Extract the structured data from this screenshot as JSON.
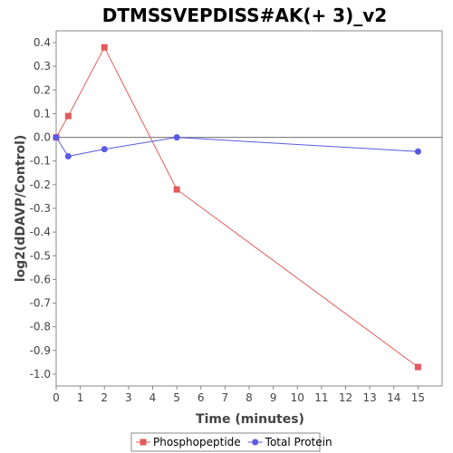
{
  "chart_data": {
    "type": "line",
    "title": "DTMSSVEPDISS#AK(+ 3)_v2",
    "xlabel": "Time (minutes)",
    "ylabel": "log2(dDAVP/Control)",
    "xlim": [
      0,
      16
    ],
    "ylim": [
      -1.05,
      0.45
    ],
    "x_ticks": [
      0,
      1,
      2,
      3,
      4,
      5,
      6,
      7,
      8,
      9,
      10,
      11,
      12,
      13,
      14,
      15
    ],
    "y_ticks": [
      0.4,
      0.3,
      0.2,
      0.1,
      0.0,
      -0.1,
      -0.2,
      -0.3,
      -0.4,
      -0.5,
      -0.6,
      -0.7,
      -0.8,
      -0.9,
      -1.0
    ],
    "y_tick_labels": [
      "0.4",
      "0.3",
      "0.2",
      "0.1",
      "0.0",
      "-0.1",
      "-0.2",
      "-0.3",
      "-0.4",
      "-0.5",
      "-0.6",
      "-0.7",
      "-0.8",
      "-0.9",
      "-1.0"
    ],
    "reference_line_y": 0.0,
    "grid": false,
    "legend_position": "bottom",
    "series": [
      {
        "name": "Phosphopeptide",
        "color": "#e35a5a",
        "marker": "square",
        "x": [
          0,
          0.5,
          2,
          5,
          15
        ],
        "y": [
          0.0,
          0.09,
          0.38,
          -0.22,
          -0.97
        ]
      },
      {
        "name": "Total Protein",
        "color": "#5a5ae3",
        "marker": "circle",
        "x": [
          0,
          0.5,
          2,
          5,
          15
        ],
        "y": [
          0.0,
          -0.08,
          -0.05,
          0.0,
          -0.06
        ]
      }
    ]
  }
}
